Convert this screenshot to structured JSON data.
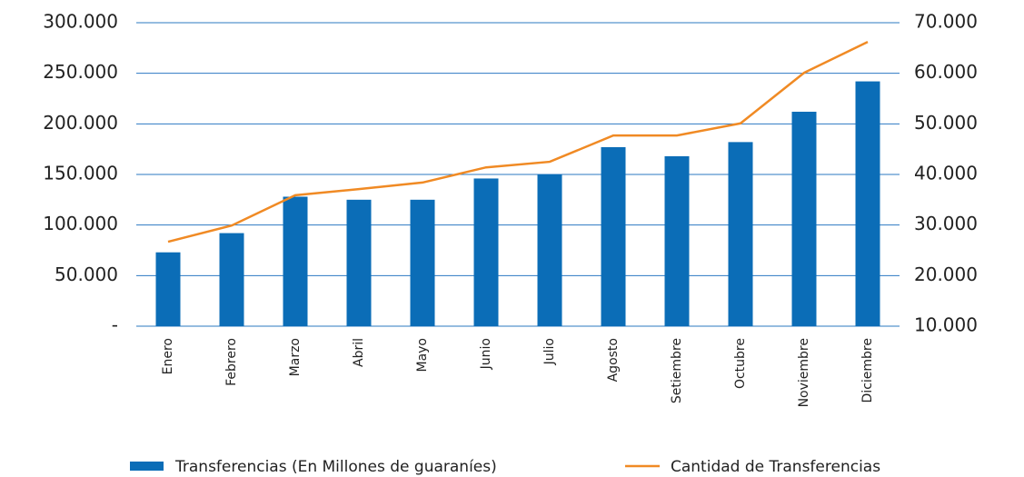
{
  "chart_data": {
    "type": "bar",
    "categories": [
      "Enero",
      "Febrero",
      "Marzo",
      "Abril",
      "Mayo",
      "Junio",
      "Julio",
      "Agosto",
      "Setiembre",
      "Octubre",
      "Noviembre",
      "Diciembre"
    ],
    "series": [
      {
        "name": "Transferencias (En Millones de guaraníes)",
        "type": "bar",
        "color": "#0b6db7",
        "values": [
          73000,
          92000,
          128000,
          125000,
          125000,
          146000,
          150000,
          177000,
          168000,
          182000,
          212000,
          242000
        ]
      },
      {
        "name": "Cantidad de Transferencias",
        "type": "line",
        "axis": "y2",
        "color": "#f08a24",
        "values": [
          26700,
          29900,
          35900,
          37100,
          38400,
          41400,
          42500,
          47700,
          47700,
          50100,
          60100,
          66200
        ]
      }
    ],
    "ylim": [
      0,
      300000
    ],
    "yticks": [
      {
        "value": 0,
        "label": "-"
      },
      {
        "value": 50000,
        "label": "50.000"
      },
      {
        "value": 100000,
        "label": "100.000"
      },
      {
        "value": 150000,
        "label": "150.000"
      },
      {
        "value": 200000,
        "label": "200.000"
      },
      {
        "value": 250000,
        "label": "250.000"
      },
      {
        "value": 300000,
        "label": "300.000"
      }
    ],
    "y2lim": [
      10000,
      70000
    ],
    "y2ticks": [
      {
        "value": 10000,
        "label": "10.000"
      },
      {
        "value": 20000,
        "label": "20.000"
      },
      {
        "value": 30000,
        "label": "30.000"
      },
      {
        "value": 40000,
        "label": "40.000"
      },
      {
        "value": 50000,
        "label": "50.000"
      },
      {
        "value": 60000,
        "label": "60.000"
      },
      {
        "value": 70000,
        "label": "70.000"
      }
    ],
    "grid": true,
    "legend": "bottom"
  }
}
